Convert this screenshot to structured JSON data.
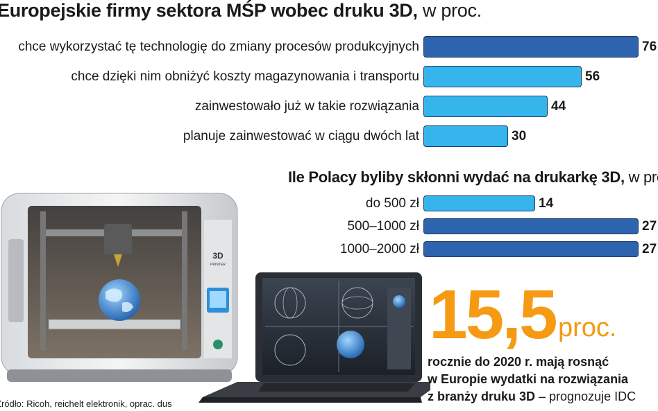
{
  "colors": {
    "bar_light": "#36b5ec",
    "bar_dark": "#2e63ad",
    "accent_orange": "#f59a12",
    "bar_border": "#1f3a66"
  },
  "chart_data": [
    {
      "type": "bar",
      "orientation": "horizontal",
      "title": "Europejskie firmy sektora MŚP wobec druku 3D,",
      "title_suffix": "w proc.",
      "categories": [
        "chce wykorzystać tę technologię do zmiany procesów produkcyjnych",
        "chce dzięki nim obniżyć koszty magazynowania i transportu",
        "zainwestowało już w takie rozwiązania",
        "planuje zainwestować w ciągu dwóch lat"
      ],
      "values": [
        76,
        56,
        44,
        30
      ],
      "value_labels": [
        "76",
        "56",
        "44",
        "30"
      ],
      "bar_colors": [
        "#2e63ad",
        "#36b5ec",
        "#36b5ec",
        "#36b5ec"
      ],
      "xlim": [
        0,
        76
      ]
    },
    {
      "type": "bar",
      "orientation": "horizontal",
      "title": "Ile Polacy byliby skłonni wydać na drukarkę 3D,",
      "title_suffix": "w proc.",
      "categories": [
        "do 500 zł",
        "500–1000 zł",
        "1000–2000 zł"
      ],
      "values": [
        14,
        27,
        27
      ],
      "value_labels": [
        "14",
        "27",
        "27"
      ],
      "bar_colors": [
        "#36b5ec",
        "#2e63ad",
        "#2e63ad"
      ],
      "xlim": [
        0,
        27
      ]
    }
  ],
  "highlight": {
    "number": "15,5",
    "unit": "proc.",
    "caption_lines": [
      "rocznie do 2020 r. mają rosnąć",
      "w Europie wydatki na rozwiązania",
      "z branży druku 3D"
    ],
    "caption_tail": " – prognozuje IDC"
  },
  "source": "Źródło: Ricoh, reichelt elektronik, oprac. dus",
  "illustration": {
    "printer_badge": "3D",
    "printer_badge_sub": "PRINTER"
  }
}
